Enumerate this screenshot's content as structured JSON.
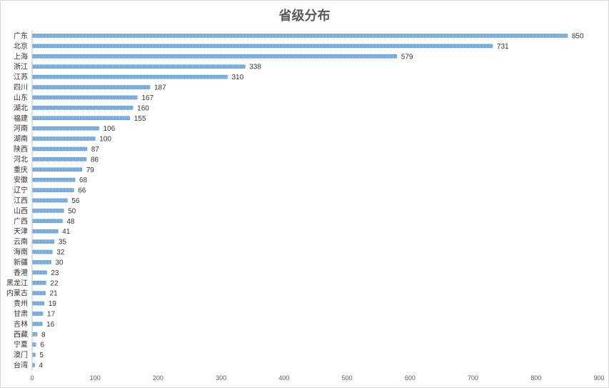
{
  "chart_data": {
    "type": "bar",
    "orientation": "horizontal",
    "title": "省级分布",
    "categories": [
      "广东",
      "北京",
      "上海",
      "浙江",
      "江苏",
      "四川",
      "山东",
      "湖北",
      "福建",
      "河南",
      "湖南",
      "陕西",
      "河北",
      "重庆",
      "安徽",
      "辽宁",
      "江西",
      "山西",
      "广西",
      "天津",
      "云南",
      "海南",
      "新疆",
      "香港",
      "黑龙江",
      "内蒙古",
      "贵州",
      "甘肃",
      "吉林",
      "西藏",
      "宁夏",
      "澳门",
      "台湾"
    ],
    "values": [
      850,
      731,
      579,
      338,
      310,
      187,
      167,
      160,
      155,
      106,
      100,
      87,
      86,
      79,
      68,
      66,
      56,
      50,
      48,
      41,
      35,
      32,
      30,
      23,
      22,
      21,
      19,
      17,
      16,
      8,
      6,
      5,
      4
    ],
    "xlim": [
      0,
      900
    ],
    "xticks": [
      0,
      100,
      200,
      300,
      400,
      500,
      600,
      700,
      800,
      900
    ],
    "bar_color": "#5b9bd5",
    "grid": false,
    "data_labels": true
  }
}
